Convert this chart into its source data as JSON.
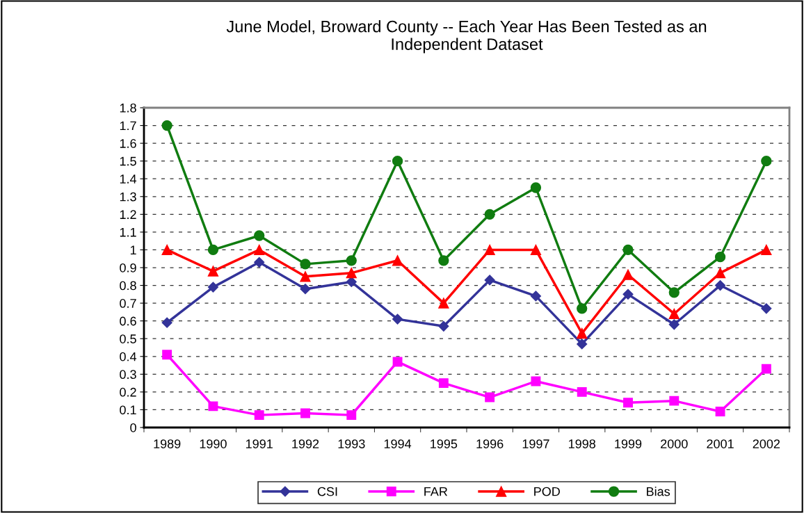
{
  "chart_data": {
    "type": "line",
    "title": "June Model, Broward County -- Each Year Has Been Tested as an\nIndependent Dataset",
    "categories": [
      "1989",
      "1990",
      "1991",
      "1992",
      "1993",
      "1994",
      "1995",
      "1996",
      "1997",
      "1998",
      "1999",
      "2000",
      "2001",
      "2002"
    ],
    "series": [
      {
        "name": "CSI",
        "color": "#333399",
        "marker": "diamond",
        "values": [
          0.59,
          0.79,
          0.93,
          0.78,
          0.82,
          0.61,
          0.57,
          0.83,
          0.74,
          0.47,
          0.75,
          0.58,
          0.8,
          0.67
        ]
      },
      {
        "name": "FAR",
        "color": "#ff00ff",
        "marker": "square",
        "values": [
          0.41,
          0.12,
          0.07,
          0.08,
          0.07,
          0.37,
          0.25,
          0.17,
          0.26,
          0.2,
          0.14,
          0.15,
          0.09,
          0.33
        ]
      },
      {
        "name": "POD",
        "color": "#ff0000",
        "marker": "triangle",
        "values": [
          1.0,
          0.88,
          1.0,
          0.85,
          0.87,
          0.94,
          0.7,
          1.0,
          1.0,
          0.53,
          0.86,
          0.64,
          0.87,
          1.0
        ]
      },
      {
        "name": "Bias",
        "color": "#107c10",
        "marker": "circle",
        "values": [
          1.7,
          1.0,
          1.08,
          0.92,
          0.94,
          1.5,
          0.94,
          1.2,
          1.35,
          0.67,
          1.0,
          0.76,
          0.96,
          1.5
        ]
      }
    ],
    "ylim": [
      0,
      1.8
    ],
    "yticks": [
      0,
      0.1,
      0.2,
      0.3,
      0.4,
      0.5,
      0.6,
      0.7,
      0.8,
      0.9,
      1,
      1.1,
      1.2,
      1.3,
      1.4,
      1.5,
      1.6,
      1.7,
      1.8
    ],
    "grid": "y",
    "legend": "bottom",
    "line_style": "solid"
  }
}
